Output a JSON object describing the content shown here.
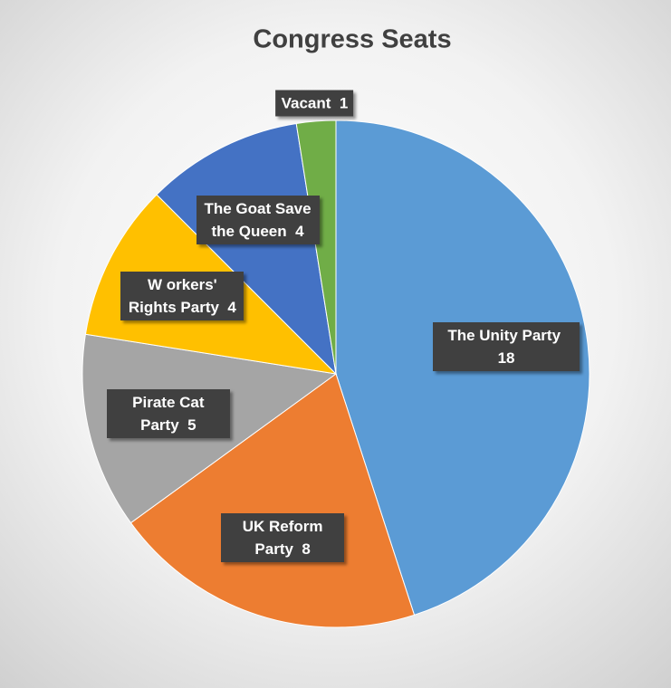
{
  "chart_data": {
    "type": "pie",
    "title": "Congress Seats",
    "categories": [
      "The Unity Party",
      "UK Reform Party",
      "Pirate Cat Party",
      "W orkers' Rights Party",
      "The Goat Save the Queen",
      "Vacant"
    ],
    "values": [
      18,
      8,
      5,
      4,
      4,
      1
    ],
    "colors": [
      "#5b9bd5",
      "#ed7d31",
      "#a5a5a5",
      "#ffc000",
      "#4472c4",
      "#70ad47"
    ]
  }
}
